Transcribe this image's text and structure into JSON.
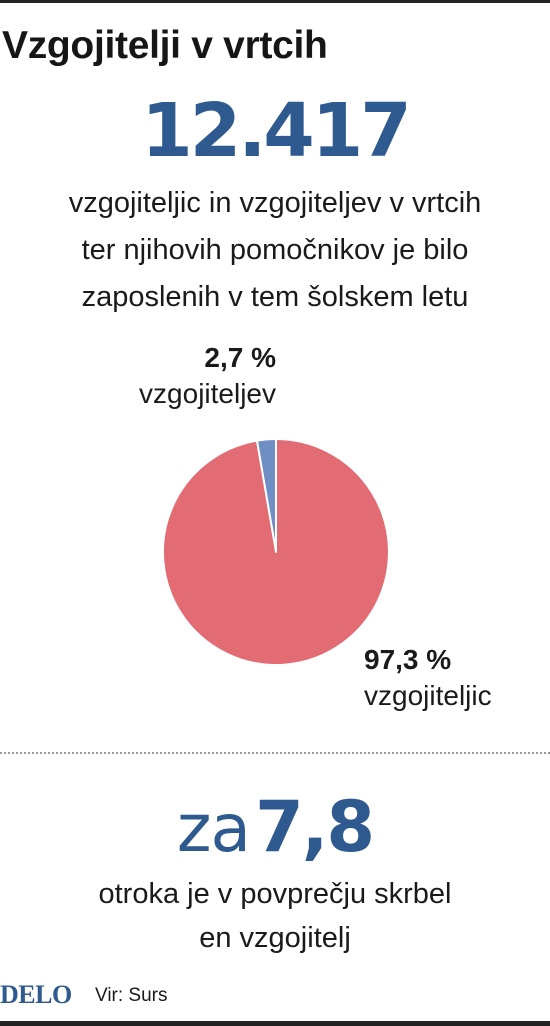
{
  "title": "Vzgojitelji v vrtcih",
  "headline": {
    "number": "12.417",
    "lines": [
      "vzgojiteljic in vzgojiteljev v vrtcih",
      "ter njihovih pomočnikov je bilo",
      "zaposlenih v tem šolskem letu"
    ]
  },
  "chart_data": {
    "type": "pie",
    "slices": [
      {
        "label": "vzgojiteljev",
        "value": 2.7,
        "value_label": "2,7 %",
        "color": "#6f8fc4"
      },
      {
        "label": "vzgojiteljic",
        "value": 97.3,
        "value_label": "97,3 %",
        "color": "#e36b74"
      }
    ],
    "title": "",
    "legend": "none"
  },
  "ratio": {
    "prefix": "za",
    "number": "7,8",
    "lines": [
      "otroka je v povprečju skrbel",
      "en vzgojitelj"
    ]
  },
  "footer": {
    "brand": "DELO",
    "source": "Vir: Surs"
  },
  "colors": {
    "accent": "#2e5a8f",
    "women": "#e36b74",
    "men": "#6f8fc4"
  }
}
